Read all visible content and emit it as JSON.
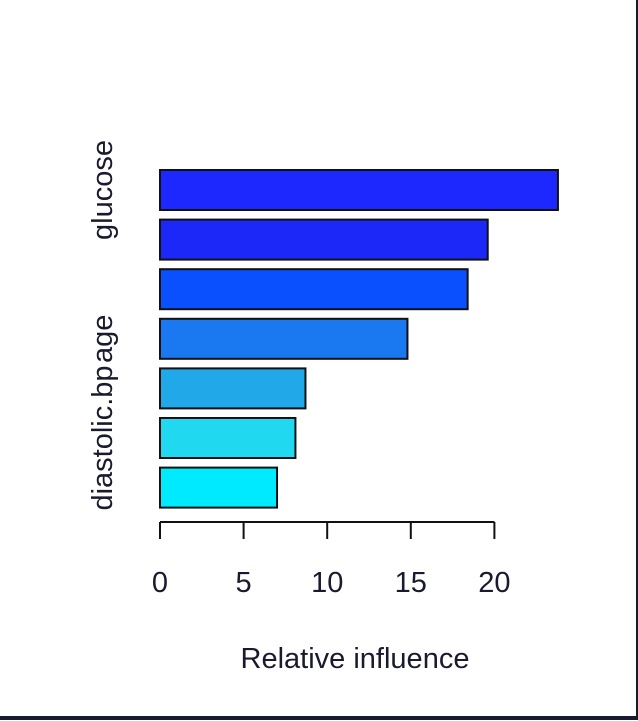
{
  "chart_data": {
    "type": "bar",
    "orientation": "horizontal",
    "xlabel": "Relative influence",
    "ylabel": "",
    "xlim": [
      0,
      24
    ],
    "x_ticks": [
      0,
      5,
      10,
      15,
      20
    ],
    "categories": [
      "glucose",
      "",
      "",
      "age",
      "",
      "diastolic.bp",
      ""
    ],
    "category_labels_shown": [
      "glucose",
      "age",
      "diastolic.bp"
    ],
    "values": [
      23.8,
      19.6,
      18.4,
      14.8,
      8.7,
      8.1,
      7.0
    ],
    "colors": [
      "#1c28ff",
      "#1c28f8",
      "#0a50ff",
      "#1a78f0",
      "#20a8e8",
      "#20d8f0",
      "#00eaff"
    ],
    "grid": false,
    "legend": "none"
  }
}
